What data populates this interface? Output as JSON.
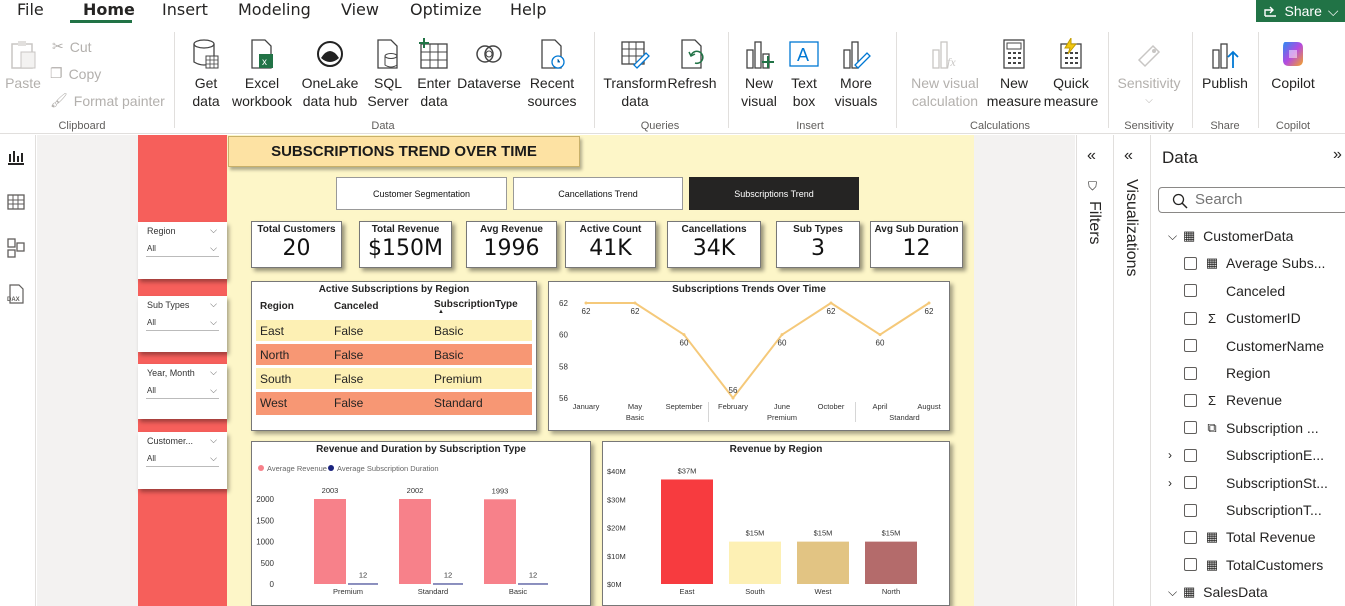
{
  "menu": {
    "items": [
      "File",
      "Home",
      "Insert",
      "Modeling",
      "View",
      "Optimize",
      "Help"
    ],
    "share_label": "Share"
  },
  "ribbon": {
    "clipboard": {
      "paste": "Paste",
      "cut": "Cut",
      "copy": "Copy",
      "format_painter": "Format painter",
      "group": "Clipboard"
    },
    "data": {
      "get_data": "Get data",
      "excel": "Excel workbook",
      "onelake": "OneLake data hub",
      "sql": "SQL Server",
      "enter": "Enter data",
      "dataverse": "Dataverse",
      "recent": "Recent sources",
      "group": "Data"
    },
    "queries": {
      "transform": "Transform data",
      "refresh": "Refresh",
      "group": "Queries"
    },
    "insert": {
      "new_visual": "New visual",
      "text_box": "Text box",
      "more_visuals": "More visuals",
      "group": "Insert"
    },
    "calculations": {
      "new_visual_calc": "New visual calculation",
      "new_measure": "New measure",
      "quick_measure": "Quick measure",
      "group": "Calculations"
    },
    "sensitivity": {
      "label": "Sensitivity",
      "group": "Sensitivity"
    },
    "share": {
      "publish": "Publish",
      "group": "Share"
    },
    "copilot": {
      "label": "Copilot",
      "group": "Copilot"
    }
  },
  "report": {
    "title": "SUBSCRIPTIONS TREND OVER TIME",
    "nav": [
      "Customer Segmentation",
      "Cancellations Trend",
      "Subscriptions Trend"
    ],
    "slicers": [
      {
        "title": "Region",
        "value": "All"
      },
      {
        "title": "Sub Types",
        "value": "All"
      },
      {
        "title": "Year, Month",
        "value": "All"
      },
      {
        "title": "Customer...",
        "value": "All"
      }
    ],
    "kpis": [
      {
        "label": "Total Customers",
        "value": "20"
      },
      {
        "label": "Total Revenue",
        "value": "$150M"
      },
      {
        "label": "Avg Revenue",
        "value": "1996"
      },
      {
        "label": "Active Count",
        "value": "41K"
      },
      {
        "label": "Cancellations",
        "value": "34K"
      },
      {
        "label": "Sub Types",
        "value": "3"
      },
      {
        "label": "Avg Sub Duration",
        "value": "12"
      }
    ],
    "table": {
      "title": "Active Subscriptions by Region",
      "headers": [
        "Region",
        "Canceled",
        "SubscriptionType"
      ],
      "rows": [
        [
          "East",
          "False",
          "Basic"
        ],
        [
          "North",
          "False",
          "Basic"
        ],
        [
          "South",
          "False",
          "Premium"
        ],
        [
          "West",
          "False",
          "Standard"
        ]
      ],
      "row_colors": [
        "#fdf0b4",
        "#f79774",
        "#fdf0b4",
        "#f79774"
      ]
    }
  },
  "chart_data": [
    {
      "type": "line",
      "title": "Subscriptions Trends Over Time",
      "x": [
        "January",
        "May",
        "September",
        "February",
        "June",
        "October",
        "April",
        "August"
      ],
      "groups": [
        {
          "label": "Basic",
          "span": [
            0,
            2
          ]
        },
        {
          "label": "Premium",
          "span": [
            3,
            5
          ]
        },
        {
          "label": "Standard",
          "span": [
            6,
            7
          ]
        }
      ],
      "values": [
        62,
        62,
        60,
        56,
        60,
        62,
        60,
        62
      ],
      "ylim": [
        56,
        62
      ],
      "yticks": [
        56,
        58,
        60,
        62
      ],
      "color": "#f5c97a"
    },
    {
      "type": "bar",
      "title": "Revenue and Duration by Subscription Type",
      "categories": [
        "Premium",
        "Standard",
        "Basic"
      ],
      "series": [
        {
          "name": "Average Revenue",
          "values": [
            2003,
            2002,
            1993
          ],
          "color": "#f7818a"
        },
        {
          "name": "Average Subscription Duration",
          "values": [
            12,
            12,
            12
          ],
          "color": "#1a237e"
        }
      ],
      "ylim": [
        0,
        2000
      ],
      "yticks": [
        0,
        500,
        1000,
        1500,
        2000
      ]
    },
    {
      "type": "bar",
      "title": "Revenue by Region",
      "categories": [
        "East",
        "South",
        "West",
        "North"
      ],
      "values": [
        37,
        15,
        15,
        15
      ],
      "labels": [
        "$37M",
        "$15M",
        "$15M",
        "$15M"
      ],
      "colors": [
        "#f73b3f",
        "#fdf0b4",
        "#e2c483",
        "#b46b6b"
      ],
      "ylim": [
        0,
        40
      ],
      "yticks": [
        "$0M",
        "$10M",
        "$20M",
        "$30M",
        "$40M"
      ]
    }
  ],
  "panes": {
    "filters": "Filters",
    "visualizations": "Visualizations",
    "data": {
      "title": "Data",
      "search_placeholder": "Search",
      "tables": [
        {
          "name": "CustomerData",
          "fields": [
            {
              "name": "Average Subs...",
              "icon": "calc"
            },
            {
              "name": "Canceled",
              "icon": ""
            },
            {
              "name": "CustomerID",
              "icon": "sigma"
            },
            {
              "name": "CustomerName",
              "icon": ""
            },
            {
              "name": "Region",
              "icon": ""
            },
            {
              "name": "Revenue",
              "icon": "sigma"
            },
            {
              "name": "Subscription ...",
              "icon": "hier"
            },
            {
              "name": "SubscriptionE...",
              "icon": "",
              "expand": true
            },
            {
              "name": "SubscriptionSt...",
              "icon": "",
              "expand": true
            },
            {
              "name": "SubscriptionT...",
              "icon": ""
            },
            {
              "name": "Total Revenue",
              "icon": "calc"
            },
            {
              "name": "TotalCustomers",
              "icon": "calc"
            }
          ]
        },
        {
          "name": "SalesData",
          "fields": []
        }
      ]
    }
  }
}
